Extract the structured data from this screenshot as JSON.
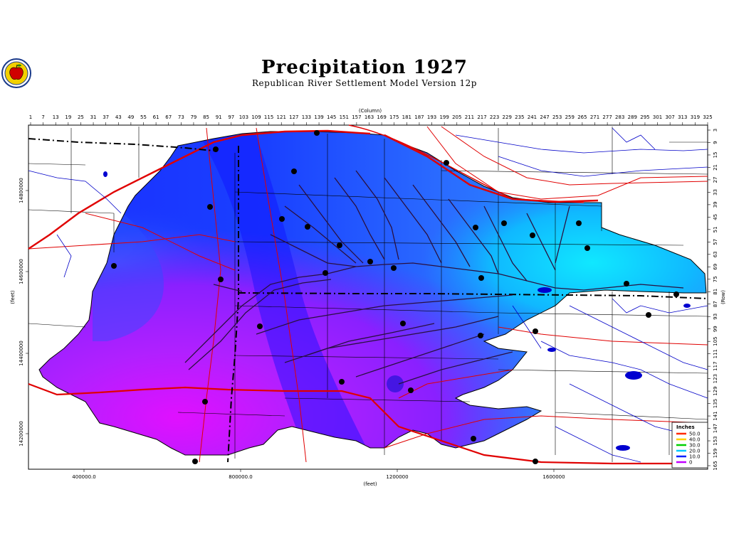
{
  "title": "Precipitation  1927",
  "subtitle": "Republican  River  Settlement  Model  Version  12p",
  "axes": {
    "column_label": "(Column)",
    "row_label": "(Row)",
    "x_feet_label": "(feet)",
    "y_feet_label": "(feet)",
    "column_ticks": [
      "1",
      "7",
      "13",
      "19",
      "25",
      "31",
      "37",
      "43",
      "49",
      "55",
      "61",
      "67",
      "73",
      "79",
      "85",
      "91",
      "97",
      "103",
      "109",
      "115",
      "121",
      "127",
      "133",
      "139",
      "145",
      "151",
      "157",
      "163",
      "169",
      "175",
      "181",
      "187",
      "193",
      "199",
      "205",
      "211",
      "217",
      "223",
      "229",
      "235",
      "241",
      "247",
      "253",
      "259",
      "265",
      "271",
      "277",
      "283",
      "289",
      "295",
      "301",
      "307",
      "313",
      "319",
      "325"
    ],
    "row_ticks": [
      "3",
      "9",
      "15",
      "21",
      "27",
      "33",
      "39",
      "45",
      "51",
      "57",
      "63",
      "69",
      "75",
      "81",
      "87",
      "93",
      "99",
      "105",
      "111",
      "117",
      "123",
      "129",
      "135",
      "141",
      "147",
      "153",
      "159",
      "165"
    ],
    "x_feet_ticks": [
      "400000.0",
      "800000.0",
      "1200000",
      "1600000"
    ],
    "y_feet_ticks": [
      "14800000",
      "14600000",
      "14400000",
      "14200000"
    ]
  },
  "legend": {
    "title": "Inches",
    "entries": [
      {
        "label": "50.0",
        "color": "#ff2a00"
      },
      {
        "label": "40.0",
        "color": "#ffd000"
      },
      {
        "label": "30.0",
        "color": "#00d000"
      },
      {
        "label": "20.0",
        "color": "#00c8ff"
      },
      {
        "label": "10.0",
        "color": "#0020ff"
      },
      {
        "label": "0",
        "color": "#c000ff"
      }
    ]
  },
  "colors": {
    "boundary_red": "#e00000",
    "river_blue": "#0000c8",
    "station_black": "#000000"
  },
  "logo_icon": "apple-logo-icon"
}
